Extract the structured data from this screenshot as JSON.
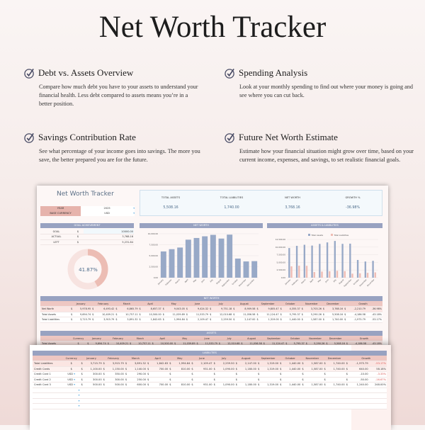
{
  "page_title": "Net Worth Tracker",
  "features": [
    {
      "title": "Debt vs. Assets Overview",
      "text": "Compare how much debt you have to your assets to understand your financial health. Less debt compared to assets means you’re in a better position.",
      "icon": "check-circle-icon"
    },
    {
      "title": "Spending Analysis",
      "text": "Look at your monthly spending to find out where your money is going and see where you can cut back.",
      "icon": "check-circle-icon"
    },
    {
      "title": "Savings Contribution Rate",
      "text": "See what percentage of your income goes into savings. The more you save, the better prepared you are for the future.",
      "icon": "check-circle-icon"
    },
    {
      "title": "Future Net Worth Estimate",
      "text": "Estimate how your financial situation might grow over time, based on your current income, expenses, and savings, to set realistic financial goals.",
      "icon": "check-circle-icon"
    }
  ],
  "sheet": {
    "title": "Net Worth Tracker",
    "year_label": "YEAR",
    "year": "2025",
    "currency_label": "BASE CURRENCY",
    "currency": "USD",
    "kpis": [
      {
        "label": "TOTAL ASSETS",
        "value": "5,508.16"
      },
      {
        "label": "TOTAL LIABILITIES",
        "value": "1,740.00"
      },
      {
        "label": "NET WORTH",
        "value": "3,768.16"
      },
      {
        "label": "GROWTH %",
        "value": "-36.98%"
      }
    ],
    "goal": {
      "header": "GOAL ACHIEVEMENT",
      "rows": [
        [
          "GOAL",
          "$",
          "10000.00"
        ],
        [
          "ACTUAL",
          "$",
          "3,768.16"
        ],
        [
          "LEFT",
          "$",
          "5,231.84"
        ]
      ],
      "percent_label": "41.87%",
      "percent": 41.87
    },
    "net_worth_chart_title": "NET WORTH",
    "assets_chart_title": "ASSETS & LIABILITIES",
    "colors": {
      "assets": "#98a9c7",
      "liabilities": "#efbcb4",
      "header": "#98a2c1",
      "month_row": "#eec7c2"
    }
  },
  "chart_data": [
    {
      "type": "bar",
      "title": "NET WORTH",
      "categories": [
        "January",
        "February",
        "March",
        "April",
        "May",
        "June",
        "July",
        "August",
        "September",
        "October",
        "November",
        "December"
      ],
      "values": [
        5978.95,
        6493.42,
        6865.79,
        8657.37,
        9043.05,
        9424.32,
        9751.18,
        8909.58,
        9805.47,
        4355.37,
        3703.26,
        3768.16
      ],
      "ylim": [
        0,
        10000
      ],
      "yticks": [
        "0.00",
        "2,500.00",
        "5,000.00",
        "7,500.00",
        "10,000.00"
      ],
      "grid": true
    },
    {
      "type": "bar",
      "title": "ASSETS & LIABILITIES",
      "categories": [
        "January",
        "February",
        "March",
        "April",
        "May",
        "June",
        "July",
        "August",
        "September",
        "October",
        "November",
        "December"
      ],
      "series": [
        {
          "name": "Total Assets",
          "values": [
            9694.74,
            10409.21,
            10757.11,
            10500.0,
            11039.89,
            11533.79,
            12010.68,
            11056.58,
            11124.47,
            5795.37,
            5290.26,
            5508.16
          ]
        },
        {
          "name": "Total Liabilities",
          "values": [
            3715.79,
            3915.79,
            3891.32,
            1842.63,
            1994.84,
            2109.47,
            2259.5,
            2147.0,
            1319.0,
            1440.0,
            1587.0,
            1740.0
          ]
        }
      ],
      "ylim": [
        0,
        12500
      ],
      "yticks": [
        "0.00",
        "2,500.00",
        "5,000.00",
        "7,500.00",
        "10,000.00",
        "12,500.00"
      ],
      "legend": "top",
      "grid": true
    }
  ],
  "net_worth_table": {
    "header": "NET WORTH",
    "months": [
      "January",
      "February",
      "March",
      "April",
      "May",
      "June",
      "July",
      "August",
      "September",
      "October",
      "November",
      "December"
    ],
    "growth_label": "Growth",
    "rows": [
      {
        "label": "Net Worth",
        "values": [
          "5,978.95",
          "6,493.42",
          "6,865.79",
          "8,657.37",
          "9,043.05",
          "9,424.32",
          "9,751.18",
          "8,909.58",
          "9,805.47",
          "4,355.37",
          "3,703.26",
          "3,768.16"
        ],
        "growth": "-2,210.79",
        "growth_pct": "-36.98%"
      },
      {
        "label": "Total Assets",
        "values": [
          "9,694.74",
          "10,409.21",
          "10,757.11",
          "10,500.00",
          "11,039.89",
          "11,533.79",
          "12,010.68",
          "11,056.58",
          "11,124.47",
          "5,795.37",
          "5,290.26",
          "5,508.16"
        ],
        "growth": "-4,186.58",
        "growth_pct": "-43.18%"
      },
      {
        "label": "Total Liabilities",
        "values": [
          "3,715.79",
          "3,915.79",
          "3,891.32",
          "1,842.63",
          "1,994.84",
          "2,109.47",
          "2,259.50",
          "2,147.00",
          "1,319.00",
          "1,440.00",
          "1,587.00",
          "1,740.00"
        ],
        "growth": "-1,975.79",
        "growth_pct": "-53.17%"
      }
    ]
  },
  "assets_table": {
    "header": "ASSETS",
    "currency_label": "Currency",
    "rows": [
      {
        "label": "Total Assets",
        "values": [
          "9,694.74",
          "10,409.21",
          "10,757.11",
          "10,500.00",
          "11,039.89",
          "11,533.79",
          "12,010.68",
          "11,056.58",
          "11,124.47",
          "5,795.37",
          "5,290.26",
          "5,508.16"
        ],
        "growth": "-4,186.58",
        "growth_pct": "-43.18%"
      }
    ]
  },
  "liabilities_table": {
    "header": "LIABILITIES",
    "currency_label": "Currency",
    "rows": [
      {
        "label": "Total Liabilities",
        "currency": "$",
        "values": [
          "3,715.79",
          "3,915.79",
          "3,891.32",
          "1,842.63",
          "1,994.84",
          "2,109.47",
          "2,259.50",
          "2,147.00",
          "1,319.00",
          "1,440.00",
          "1,587.00",
          "1,740.00"
        ],
        "growth": "-1,975.79",
        "growth_pct": "-53.17%"
      },
      {
        "label": "Credit Cards",
        "currency": "$",
        "values": [
          "1,100.00",
          "1,150.00",
          "1,140.00",
          "700.00",
          "810.00",
          "931.00",
          "1,090.00",
          "1,180.00",
          "1,319.00",
          "1,440.00",
          "1,587.00",
          "1,740.00"
        ],
        "growth": "640.00",
        "growth_pct": "58.18%"
      },
      {
        "label": "Credit Card 1",
        "currency": "USD",
        "values": [
          "300.00",
          "350.00",
          "290.00",
          "",
          "",
          "",
          "",
          "",
          "",
          "",
          "",
          ""
        ],
        "growth": "-10.00",
        "growth_pct": "-3.33%"
      },
      {
        "label": "Credit Card 2",
        "currency": "USD",
        "values": [
          "300.00",
          "300.00",
          "250.00",
          "",
          "",
          "",
          "",
          "",
          "",
          "",
          "",
          ""
        ],
        "growth": "-50.00",
        "growth_pct": "-16.67%"
      },
      {
        "label": "Credit Card 3",
        "currency": "USD",
        "values": [
          "500.00",
          "500.00",
          "600.00",
          "700.00",
          "810.00",
          "931.00",
          "1,090.00",
          "1,180.00",
          "1,319.00",
          "1,440.00",
          "1,587.00",
          "1,740.00"
        ],
        "growth": "1,240.00",
        "growth_pct": "248.00%"
      }
    ]
  }
}
